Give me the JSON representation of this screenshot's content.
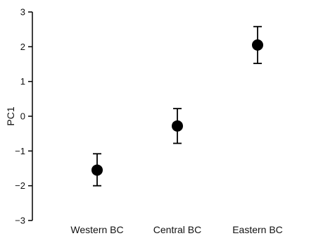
{
  "chart_data": {
    "type": "scatter",
    "title": "",
    "xlabel": "",
    "ylabel": "PC1",
    "categories": [
      "Western BC",
      "Central BC",
      "Eastern BC"
    ],
    "values": [
      -1.55,
      -0.28,
      2.05
    ],
    "error_low": [
      -2.0,
      -0.78,
      1.52
    ],
    "error_high": [
      -1.08,
      0.22,
      2.58
    ],
    "ylim": [
      -3,
      3
    ],
    "yticks": [
      3,
      2,
      1,
      0,
      -1,
      -2,
      -3
    ],
    "ytick_labels": [
      "3",
      "2",
      "1",
      "0",
      "−1",
      "−2",
      "−3"
    ],
    "grid": false,
    "legend": "none",
    "marker_color": "#000000"
  }
}
